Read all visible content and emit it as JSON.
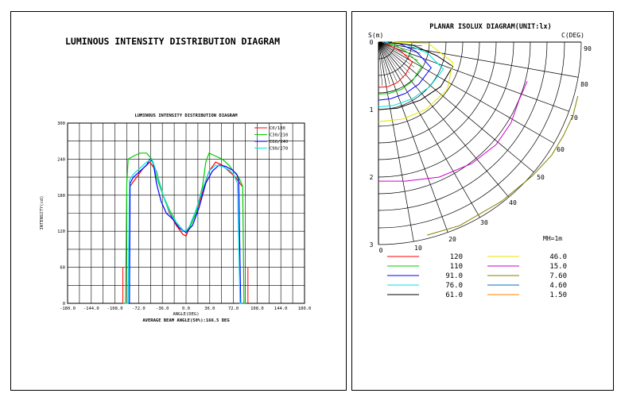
{
  "chart_data": [
    {
      "type": "line",
      "title": "LUMINOUS INTENSITY DISTRIBUTION DIAGRAM",
      "inner_title": "LUMINOUS INTENSITY DISTRIBUTION DIAGRAM",
      "xlabel": "ANGLE(DEG)",
      "ylabel": "INTENSITY(cd)",
      "footer": "AVERAGE BEAM ANGLE(50%):166.5 DEG",
      "xlim": [
        -180,
        180
      ],
      "ylim": [
        0,
        300
      ],
      "x_ticks": [
        "-180.0",
        "-144.0",
        "-108.0",
        "-72.0",
        "-36.0",
        "0.0",
        "36.0",
        "72.0",
        "108.0",
        "144.0",
        "180.0"
      ],
      "y_ticks": [
        "0",
        "60",
        "120",
        "180",
        "240",
        "300"
      ],
      "grid": true,
      "legend_position": "top-right",
      "series": [
        {
          "name": "C0/180",
          "color": "#ff0000",
          "points": [
            [
              -85,
              195
            ],
            [
              -75,
              210
            ],
            [
              -65,
              225
            ],
            [
              -55,
              235
            ],
            [
              -45,
              220
            ],
            [
              -35,
              180
            ],
            [
              -25,
              150
            ],
            [
              -15,
              130
            ],
            [
              -5,
              115
            ],
            [
              0,
              112
            ],
            [
              5,
              125
            ],
            [
              15,
              150
            ],
            [
              25,
              185
            ],
            [
              35,
              220
            ],
            [
              45,
              235
            ],
            [
              55,
              230
            ],
            [
              65,
              220
            ],
            [
              75,
              210
            ],
            [
              85,
              195
            ]
          ]
        },
        {
          "name": "C30/210",
          "color": "#00cc00",
          "points": [
            [
              -96,
              0
            ],
            [
              -92,
              0
            ],
            [
              -90,
              200
            ],
            [
              -88,
              240
            ],
            [
              -80,
              245
            ],
            [
              -70,
              250
            ],
            [
              -60,
              250
            ],
            [
              -52,
              240
            ],
            [
              -45,
              210
            ],
            [
              -35,
              180
            ],
            [
              -25,
              155
            ],
            [
              -15,
              135
            ],
            [
              -5,
              122
            ],
            [
              0,
              118
            ],
            [
              5,
              125
            ],
            [
              15,
              150
            ],
            [
              25,
              195
            ],
            [
              30,
              235
            ],
            [
              35,
              250
            ],
            [
              45,
              245
            ],
            [
              55,
              240
            ],
            [
              65,
              230
            ],
            [
              72,
              220
            ],
            [
              80,
              210
            ],
            [
              86,
              195
            ],
            [
              88,
              0
            ],
            [
              91,
              0
            ]
          ]
        },
        {
          "name": "C60/240",
          "color": "#0000ff",
          "points": [
            [
              -89,
              0
            ],
            [
              -86,
              0
            ],
            [
              -85,
              200
            ],
            [
              -80,
              210
            ],
            [
              -70,
              220
            ],
            [
              -60,
              230
            ],
            [
              -55,
              240
            ],
            [
              -50,
              235
            ],
            [
              -45,
              200
            ],
            [
              -38,
              170
            ],
            [
              -30,
              150
            ],
            [
              -20,
              140
            ],
            [
              -10,
              125
            ],
            [
              0,
              118
            ],
            [
              10,
              130
            ],
            [
              20,
              160
            ],
            [
              30,
              200
            ],
            [
              40,
              220
            ],
            [
              50,
              230
            ],
            [
              60,
              228
            ],
            [
              70,
              222
            ],
            [
              77,
              215
            ],
            [
              80,
              205
            ],
            [
              83,
              0
            ],
            [
              86,
              0
            ]
          ]
        },
        {
          "name": "C90/270",
          "color": "#00e5e5",
          "points": [
            [
              -92,
              0
            ],
            [
              -88,
              0
            ],
            [
              -86,
              205
            ],
            [
              -80,
              215
            ],
            [
              -70,
              225
            ],
            [
              -60,
              235
            ],
            [
              -52,
              240
            ],
            [
              -47,
              225
            ],
            [
              -40,
              200
            ],
            [
              -32,
              170
            ],
            [
              -24,
              150
            ],
            [
              -14,
              133
            ],
            [
              -5,
              122
            ],
            [
              0,
              120
            ],
            [
              5,
              128
            ],
            [
              15,
              155
            ],
            [
              25,
              190
            ],
            [
              35,
              220
            ],
            [
              45,
              230
            ],
            [
              55,
              228
            ],
            [
              65,
              222
            ],
            [
              72,
              215
            ],
            [
              78,
              200
            ],
            [
              82,
              0
            ],
            [
              86,
              0
            ]
          ]
        }
      ],
      "extra_lines": [
        {
          "color": "#ff0000",
          "points": [
            [
              -96,
              0
            ],
            [
              -96,
              60
            ]
          ]
        },
        {
          "color": "#ff0000",
          "points": [
            [
              94,
              0
            ],
            [
              94,
              60
            ]
          ]
        }
      ]
    },
    {
      "type": "polar-isolux",
      "title": "PLANAR ISOLUX DIAGRAM(UNIT:lx)",
      "y_axis_label": "S(m)",
      "angle_axis_label": "C(DEG)",
      "y_ticks": [
        "0",
        "1",
        "2",
        "3"
      ],
      "x_ticks": [
        "0",
        "10",
        "20"
      ],
      "angle_labels": [
        "30",
        "40",
        "50",
        "60",
        "70",
        "80",
        "90"
      ],
      "mounting_height_label": "MH=1m",
      "legend": [
        {
          "value": "120",
          "color": "#ff0000"
        },
        {
          "value": "110",
          "color": "#00cc00"
        },
        {
          "value": "91.0",
          "color": "#0000ff"
        },
        {
          "value": "76.0",
          "color": "#00e5e5"
        },
        {
          "value": "61.0",
          "color": "#000000"
        },
        {
          "value": "46.0",
          "color": "#e6e600"
        },
        {
          "value": "15.0",
          "color": "#cc00cc"
        },
        {
          "value": "7.60",
          "color": "#808000"
        },
        {
          "value": "4.60",
          "color": "#0070c0"
        },
        {
          "value": "1.50",
          "color": "#ff8000"
        }
      ],
      "series": [
        {
          "name": "120",
          "color": "#ff0000",
          "points": [
            [
              0.06,
              0.0
            ],
            [
              0.18,
              0.06
            ],
            [
              0.34,
              0.14
            ],
            [
              0.5,
              0.3
            ],
            [
              0.4,
              0.48
            ],
            [
              0.28,
              0.6
            ],
            [
              0.14,
              0.66
            ],
            [
              0.0,
              0.67
            ]
          ]
        },
        {
          "name": "110",
          "color": "#00cc00",
          "points": [
            [
              0.06,
              0.0
            ],
            [
              0.24,
              0.04
            ],
            [
              0.44,
              0.16
            ],
            [
              0.64,
              0.36
            ],
            [
              0.5,
              0.58
            ],
            [
              0.34,
              0.7
            ],
            [
              0.16,
              0.76
            ],
            [
              0.0,
              0.77
            ]
          ]
        },
        {
          "name": "91.0",
          "color": "#0000ff",
          "points": [
            [
              0.08,
              0.0
            ],
            [
              0.3,
              0.02
            ],
            [
              0.56,
              0.14
            ],
            [
              0.78,
              0.38
            ],
            [
              0.6,
              0.62
            ],
            [
              0.4,
              0.76
            ],
            [
              0.18,
              0.84
            ],
            [
              0.0,
              0.86
            ]
          ]
        },
        {
          "name": "76.0",
          "color": "#00e5e5",
          "points": [
            [
              0.1,
              0.0
            ],
            [
              0.4,
              0.03
            ],
            [
              0.72,
              0.16
            ],
            [
              0.96,
              0.4
            ],
            [
              0.76,
              0.66
            ],
            [
              0.5,
              0.84
            ],
            [
              0.22,
              0.94
            ],
            [
              0.0,
              0.96
            ]
          ]
        },
        {
          "name": "61.0",
          "color": "#000000",
          "points": [
            [
              0.14,
              0.0
            ],
            [
              0.52,
              0.05
            ],
            [
              0.86,
              0.2
            ],
            [
              1.1,
              0.36
            ],
            [
              0.92,
              0.66
            ],
            [
              0.62,
              0.86
            ],
            [
              0.28,
              0.98
            ],
            [
              0.0,
              1.0
            ]
          ]
        },
        {
          "name": "46.0",
          "color": "#e6e600",
          "points": [
            [
              0.2,
              0.0
            ],
            [
              0.74,
              0.02
            ],
            [
              1.1,
              0.3
            ],
            [
              1.02,
              0.7
            ],
            [
              0.7,
              1.0
            ],
            [
              0.36,
              1.14
            ],
            [
              0.0,
              1.18
            ]
          ]
        },
        {
          "name": "15.0",
          "color": "#cc00cc",
          "points": [
            [
              2.2,
              0.58
            ],
            [
              2.08,
              0.86
            ],
            [
              1.96,
              1.2
            ],
            [
              1.74,
              1.52
            ],
            [
              1.38,
              1.8
            ],
            [
              0.9,
              2.0
            ],
            [
              0.4,
              2.06
            ],
            [
              0.0,
              2.06
            ]
          ]
        },
        {
          "name": "7.60",
          "color": "#808000",
          "points": [
            [
              2.95,
              0.8
            ],
            [
              2.88,
              1.08
            ],
            [
              2.74,
              1.38
            ],
            [
              2.56,
              1.68
            ],
            [
              2.28,
              1.98
            ],
            [
              1.82,
              2.36
            ],
            [
              1.2,
              2.72
            ],
            [
              0.72,
              2.86
            ]
          ]
        }
      ]
    }
  ]
}
